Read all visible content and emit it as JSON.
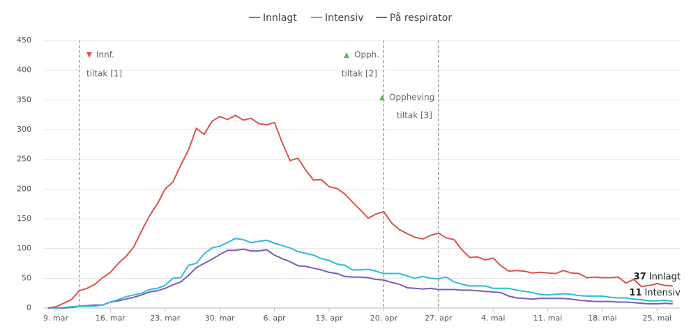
{
  "chart_data": {
    "type": "line",
    "categories": [
      null,
      "9. mar",
      null,
      null,
      null,
      null,
      null,
      null,
      "16. mar",
      null,
      null,
      null,
      null,
      null,
      null,
      "23. mar",
      null,
      null,
      null,
      null,
      null,
      null,
      "30. mar",
      null,
      null,
      null,
      null,
      null,
      null,
      "6. apr",
      null,
      null,
      null,
      null,
      null,
      null,
      "13. apr",
      null,
      null,
      null,
      null,
      null,
      null,
      "20. apr",
      null,
      null,
      null,
      null,
      null,
      null,
      "27. apr",
      null,
      null,
      null,
      null,
      null,
      null,
      "4. mai",
      null,
      null,
      null,
      null,
      null,
      null,
      "11. mai",
      null,
      null,
      null,
      null,
      null,
      null,
      "18. mai",
      null,
      null,
      null,
      null,
      null,
      null,
      "25. mai",
      null,
      null
    ],
    "series": [
      {
        "name": "Innlagt",
        "color": "#d9534f",
        "values": [
          0,
          2,
          8,
          14,
          29,
          33,
          40,
          51,
          60,
          75,
          87,
          103,
          130,
          155,
          175,
          200,
          212,
          240,
          266,
          302,
          292,
          314,
          322,
          317,
          324,
          316,
          319,
          310,
          308,
          312,
          278,
          248,
          252,
          232,
          215,
          216,
          204,
          201,
          192,
          178,
          165,
          151,
          158,
          162,
          143,
          132,
          125,
          119,
          116,
          122,
          126,
          118,
          115,
          98,
          85,
          86,
          81,
          84,
          71,
          62,
          63,
          62,
          59,
          60,
          59,
          58,
          63,
          59,
          58,
          51,
          52,
          51,
          51,
          52,
          42,
          48,
          36,
          38,
          41,
          38,
          37
        ]
      },
      {
        "name": "Intensiv",
        "color": "#2bbcd4",
        "values": [
          0,
          0,
          1,
          2,
          3,
          3,
          3,
          5,
          10,
          14,
          19,
          22,
          25,
          31,
          33,
          38,
          50,
          51,
          72,
          75,
          91,
          101,
          104,
          110,
          117,
          115,
          110,
          112,
          114,
          109,
          105,
          101,
          95,
          92,
          89,
          83,
          80,
          74,
          72,
          64,
          64,
          65,
          62,
          58,
          58,
          58,
          54,
          50,
          53,
          50,
          49,
          52,
          44,
          40,
          37,
          37,
          37,
          33,
          33,
          33,
          30,
          28,
          26,
          23,
          22,
          23,
          24,
          23,
          21,
          20,
          20,
          20,
          18,
          17,
          17,
          15,
          14,
          12,
          12,
          13,
          11
        ]
      },
      {
        "name": "På respirator",
        "color": "#7b5ab8",
        "values": [
          0,
          0,
          0,
          1,
          3,
          4,
          5,
          5,
          10,
          12,
          15,
          18,
          22,
          27,
          29,
          33,
          39,
          44,
          55,
          68,
          75,
          82,
          90,
          97,
          97,
          99,
          96,
          96,
          98,
          89,
          83,
          78,
          71,
          70,
          67,
          64,
          60,
          58,
          53,
          52,
          52,
          51,
          48,
          47,
          43,
          40,
          34,
          33,
          32,
          33,
          31,
          31,
          31,
          30,
          30,
          29,
          28,
          27,
          26,
          20,
          17,
          16,
          15,
          16,
          16,
          16,
          16,
          15,
          13,
          12,
          11,
          11,
          11,
          10,
          10,
          9,
          8,
          7,
          7,
          8,
          7
        ]
      }
    ],
    "annotations": [
      {
        "lines": [
          "Innf.",
          "tiltak [1]"
        ],
        "color": "#d9534f"
      },
      {
        "lines": [
          "Opph.",
          "tiltak [2]"
        ],
        "color": "#5cb85c"
      },
      {
        "lines": [
          "Oppheving",
          "tiltak [3]"
        ],
        "color": "#5cb85c"
      }
    ],
    "ylim": [
      0,
      450
    ],
    "yticks": [
      0,
      50,
      100,
      150,
      200,
      250,
      300,
      350,
      400,
      450
    ],
    "grid": true,
    "legend": "top"
  }
}
